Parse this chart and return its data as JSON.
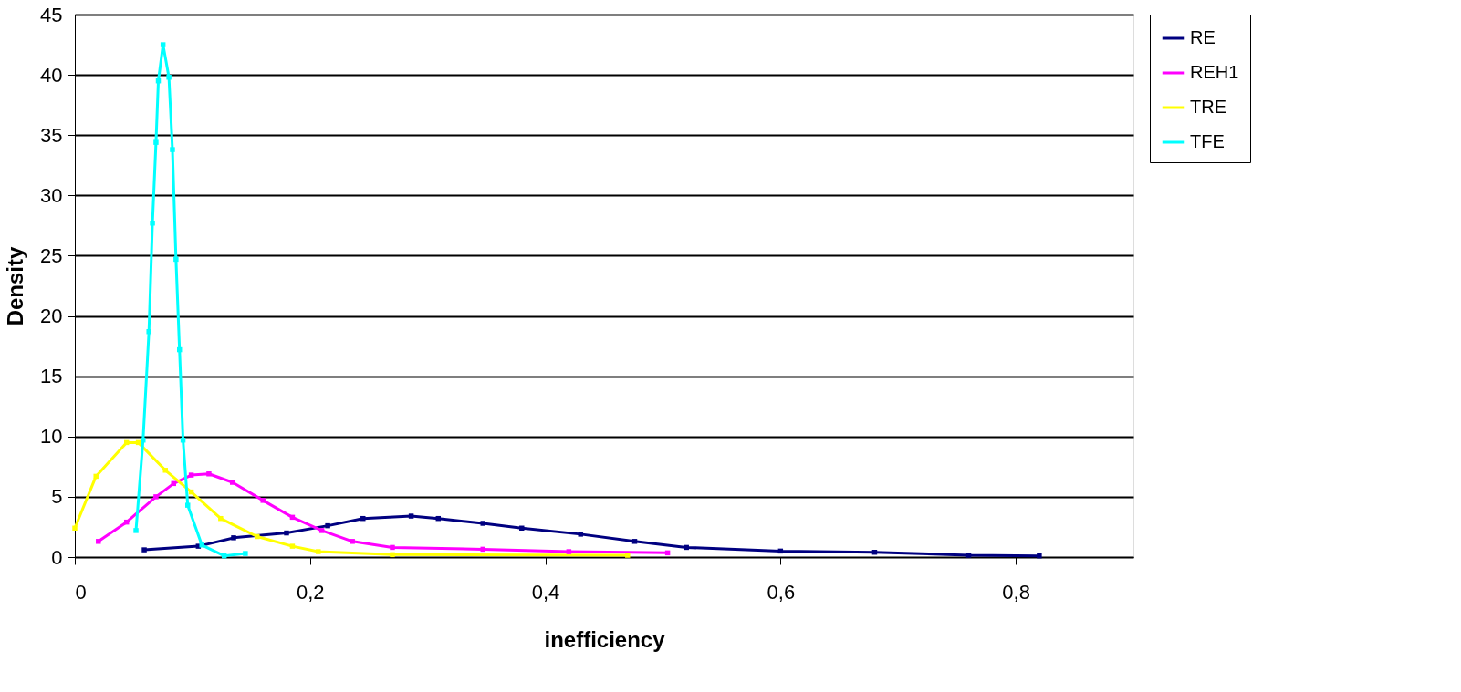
{
  "chart_data": {
    "type": "line",
    "xlabel": "inefficiency",
    "ylabel": "Density",
    "xlim": [
      0,
      0.9
    ],
    "xticks": [
      0,
      {
        "value": 0.2,
        "label": "0,2"
      },
      {
        "value": 0.4,
        "label": "0,4"
      },
      {
        "value": 0.6,
        "label": "0,6"
      },
      {
        "value": 0.8,
        "label": "0,8"
      }
    ],
    "ylim": [
      0,
      45
    ],
    "yticks": [
      0,
      5,
      10,
      15,
      20,
      25,
      30,
      35,
      40,
      45
    ],
    "grid": "y",
    "legend": "right",
    "marker": "square",
    "line_style": "solid",
    "series": [
      {
        "name": "RE",
        "color": "#000080",
        "x": [
          0.059,
          0.105,
          0.135,
          0.18,
          0.215,
          0.245,
          0.286,
          0.309,
          0.347,
          0.38,
          0.43,
          0.476,
          0.52,
          0.6,
          0.68,
          0.76,
          0.82
        ],
        "values": [
          0.6,
          0.9,
          1.6,
          2.0,
          2.6,
          3.2,
          3.4,
          3.2,
          2.8,
          2.4,
          1.9,
          1.3,
          0.8,
          0.5,
          0.4,
          0.15,
          0.1
        ]
      },
      {
        "name": "REH1",
        "color": "#ff00ff",
        "x": [
          0.02,
          0.044,
          0.069,
          0.084,
          0.099,
          0.114,
          0.134,
          0.16,
          0.185,
          0.21,
          0.236,
          0.27,
          0.347,
          0.42,
          0.504
        ],
        "values": [
          1.3,
          2.9,
          5.0,
          6.1,
          6.8,
          6.9,
          6.2,
          4.7,
          3.3,
          2.2,
          1.3,
          0.8,
          0.65,
          0.45,
          0.35
        ]
      },
      {
        "name": "TRE",
        "color": "#ffff00",
        "x": [
          0,
          0.018,
          0.044,
          0.054,
          0.077,
          0.099,
          0.124,
          0.155,
          0.185,
          0.207,
          0.27,
          0.47
        ],
        "values": [
          2.4,
          6.7,
          9.5,
          9.5,
          7.2,
          5.4,
          3.2,
          1.7,
          0.9,
          0.45,
          0.2,
          0.15
        ]
      },
      {
        "name": "TFE",
        "color": "#00ffff",
        "x": [
          0.052,
          0.058,
          0.063,
          0.066,
          0.069,
          0.071,
          0.075,
          0.08,
          0.083,
          0.086,
          0.089,
          0.092,
          0.096,
          0.108,
          0.127,
          0.145
        ],
        "values": [
          2.2,
          9.7,
          18.7,
          27.7,
          34.4,
          39.5,
          42.5,
          39.8,
          33.8,
          24.7,
          17.2,
          9.7,
          4.3,
          1.0,
          0.1,
          0.3
        ]
      }
    ]
  }
}
